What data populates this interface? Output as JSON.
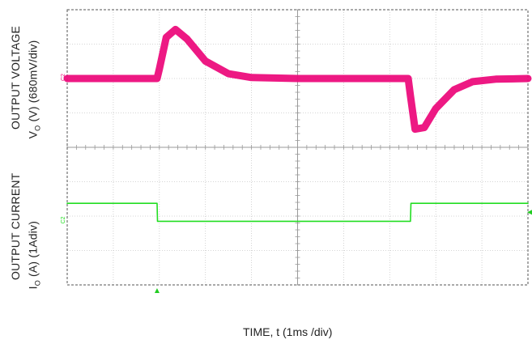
{
  "chart_data": {
    "type": "line",
    "title": "",
    "xlabel": "TIME, t (1ms /div)",
    "grid": true,
    "divisions": {
      "x": 10,
      "y": 8
    },
    "xlim_ms": [
      0,
      10
    ],
    "channels": [
      {
        "name": "OUTPUT VOLTAGE",
        "ylabel_line1": "OUTPUT VOLTAGE",
        "ylabel_symbol": "V",
        "ylabel_sub": "O",
        "ylabel_rest": " (V) (680mV/div)",
        "marker": "C2",
        "color": "#ec0d7c",
        "scale": "680mV/div",
        "baseline_div": 0,
        "x_ms": [
          0,
          1.95,
          2.0,
          2.15,
          2.35,
          2.6,
          3.0,
          3.5,
          4.0,
          5.0,
          6.0,
          7.0,
          7.4,
          7.45,
          7.55,
          7.75,
          8.0,
          8.4,
          8.8,
          9.3,
          10.0
        ],
        "y_div": [
          0,
          0,
          0.3,
          1.3,
          1.55,
          1.25,
          0.55,
          0.15,
          0.03,
          0.0,
          0.0,
          0.0,
          0.0,
          -0.55,
          -1.6,
          -1.55,
          -0.95,
          -0.35,
          -0.1,
          -0.02,
          0.0
        ]
      },
      {
        "name": "OUTPUT CURRENT",
        "ylabel_line1": "OUTPUT CURRENT",
        "ylabel_symbol": "I",
        "ylabel_sub": "O",
        "ylabel_rest": " (A)  (1Adiv)",
        "marker": "C2",
        "color": "#22dd22",
        "scale": "1Adiv",
        "baseline_div": 0,
        "x_ms": [
          0,
          1.95,
          1.96,
          7.45,
          7.46,
          10.0
        ],
        "y_div": [
          0.9,
          0.9,
          0.0,
          0.0,
          0.9,
          0.9
        ]
      }
    ],
    "trigger_marker_ms": 1.95
  }
}
